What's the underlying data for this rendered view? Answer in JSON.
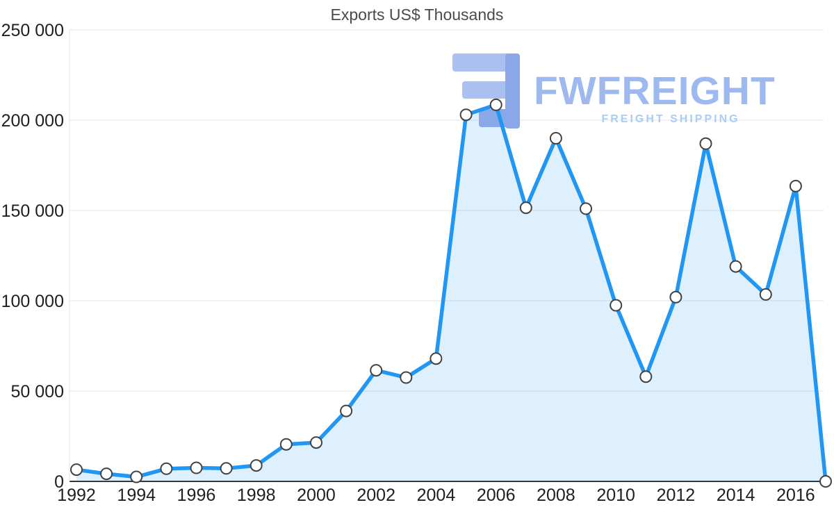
{
  "chart_data": {
    "type": "area",
    "title": "Exports US$ Thousands",
    "x": [
      1992,
      1993,
      1994,
      1995,
      1996,
      1997,
      1998,
      1999,
      2000,
      2001,
      2002,
      2003,
      2004,
      2005,
      2006,
      2007,
      2008,
      2009,
      2010,
      2011,
      2012,
      2013,
      2014,
      2015,
      2016,
      2017
    ],
    "values": [
      6500,
      4200,
      2500,
      7000,
      7500,
      7200,
      8800,
      20500,
      21500,
      39000,
      61500,
      57500,
      68000,
      203000,
      208500,
      151500,
      190000,
      151000,
      97500,
      58000,
      102000,
      187000,
      119000,
      103500,
      163500,
      0
    ],
    "ylim": [
      0,
      250000
    ],
    "yticks": [
      0,
      50000,
      100000,
      150000,
      200000,
      250000
    ],
    "ytick_labels": [
      "0",
      "50 000",
      "100 000",
      "150 000",
      "200 000",
      "250 000"
    ],
    "xticks": [
      1992,
      1994,
      1996,
      1998,
      2000,
      2002,
      2004,
      2006,
      2008,
      2010,
      2012,
      2014,
      2016
    ],
    "grid": true,
    "legend": "none",
    "line_color": "#2196f3",
    "area_color": "#2196f3",
    "marker_fill": "#ffffff",
    "marker_stroke": "#424242",
    "grid_color": "#e3e3e3",
    "axis_color": "#333333"
  },
  "watermark": {
    "brand": "FWFREIGHT",
    "tagline": "FREIGHT SHIPPING",
    "brand_color": "#9db9ef",
    "tagline_color": "#a9cdf5",
    "logo_color_dark": "#8aa8e8",
    "logo_color_light": "#a9c0f1"
  }
}
